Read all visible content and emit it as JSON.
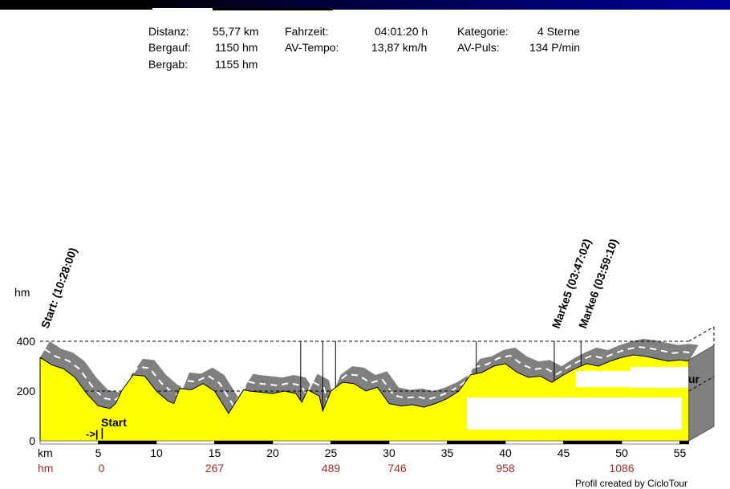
{
  "stats": {
    "distanz_label": "Distanz:",
    "distanz": "55,77 km",
    "bergauf_label": "Bergauf:",
    "bergauf": "1150 hm",
    "bergab_label": "Bergab:",
    "bergab": "1155 hm",
    "fahrzeit_label": "Fahrzeit:",
    "fahrzeit": "04:01:20 h",
    "tempo_label": "AV-Tempo:",
    "tempo": "13,87 km/h",
    "kategorie_label": "Kategorie:",
    "kategorie": "4 Sterne",
    "puls_label": "AV-Puls:",
    "puls": "134 P/min"
  },
  "chart_data": {
    "type": "area",
    "title": "",
    "ylabel": "hm",
    "xlabel": "km",
    "ylim": [
      0,
      400
    ],
    "xlim": [
      0,
      55.77
    ],
    "yticks": [
      0,
      200,
      400
    ],
    "xticks": [
      5,
      10,
      15,
      20,
      25,
      30,
      35,
      40,
      45,
      50,
      55
    ],
    "hm_row_label": "hm",
    "hm_cumulative": [
      {
        "km": 5,
        "value": "0"
      },
      {
        "km": 15,
        "value": "267"
      },
      {
        "km": 25,
        "value": "489"
      },
      {
        "km": 30,
        "value": "746"
      },
      {
        "km": 40,
        "value": "958"
      },
      {
        "km": 50,
        "value": "1086"
      }
    ],
    "profile": [
      [
        0,
        335
      ],
      [
        1,
        305
      ],
      [
        2,
        290
      ],
      [
        3,
        255
      ],
      [
        4,
        190
      ],
      [
        5,
        140
      ],
      [
        6,
        130
      ],
      [
        6.5,
        150
      ],
      [
        7,
        200
      ],
      [
        8,
        265
      ],
      [
        9,
        260
      ],
      [
        10,
        200
      ],
      [
        11,
        160
      ],
      [
        11.5,
        150
      ],
      [
        12,
        210
      ],
      [
        13,
        205
      ],
      [
        14,
        230
      ],
      [
        15,
        200
      ],
      [
        16.2,
        110
      ],
      [
        17,
        170
      ],
      [
        17.5,
        205
      ],
      [
        18,
        200
      ],
      [
        19,
        195
      ],
      [
        20,
        190
      ],
      [
        21,
        200
      ],
      [
        22,
        190
      ],
      [
        22.5,
        155
      ],
      [
        23,
        205
      ],
      [
        24,
        180
      ],
      [
        24.3,
        120
      ],
      [
        25,
        200
      ],
      [
        26,
        235
      ],
      [
        27,
        230
      ],
      [
        28,
        200
      ],
      [
        29,
        215
      ],
      [
        30,
        150
      ],
      [
        31,
        140
      ],
      [
        32,
        145
      ],
      [
        33,
        135
      ],
      [
        34,
        150
      ],
      [
        35,
        170
      ],
      [
        36,
        200
      ],
      [
        37,
        265
      ],
      [
        38,
        275
      ],
      [
        39,
        300
      ],
      [
        40,
        310
      ],
      [
        41,
        275
      ],
      [
        42,
        255
      ],
      [
        43,
        260
      ],
      [
        44,
        235
      ],
      [
        45,
        265
      ],
      [
        46,
        290
      ],
      [
        47,
        310
      ],
      [
        48,
        300
      ],
      [
        49,
        320
      ],
      [
        50,
        335
      ],
      [
        51,
        345
      ],
      [
        52,
        340
      ],
      [
        53,
        330
      ],
      [
        54,
        320
      ],
      [
        55,
        325
      ],
      [
        55.77,
        320
      ]
    ],
    "markers": [
      {
        "km": 5.2,
        "label": "Start: (10:28:00)"
      },
      {
        "km": 22.4,
        "label": ""
      },
      {
        "km": 24.3,
        "label": ""
      },
      {
        "km": 25.4,
        "label": ""
      },
      {
        "km": 37.5,
        "label": ""
      },
      {
        "km": 44.2,
        "label": "Marke5 (03:47:02)"
      },
      {
        "km": 46.5,
        "label": "Marke6 (03:59:10)"
      }
    ],
    "start_label": "Start",
    "start_arrow": "->|",
    "partial_text": "ur",
    "colors": {
      "fill": "#ffff00",
      "shadow": "#808080",
      "hm": "#a52a2a"
    }
  },
  "footer": "Profil created by CicloTour"
}
